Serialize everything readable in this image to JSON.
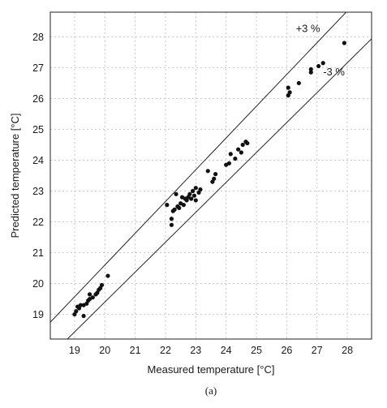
{
  "chart_data": {
    "type": "scatter",
    "xlabel": "Measured temperature [°C]",
    "ylabel": "Predicted temperature [°C]",
    "xlim": [
      18.2,
      28.8
    ],
    "ylim": [
      18.2,
      28.8
    ],
    "xticks": [
      19,
      20,
      21,
      22,
      23,
      24,
      25,
      26,
      27,
      28
    ],
    "yticks": [
      19,
      20,
      21,
      22,
      23,
      24,
      25,
      26,
      27,
      28
    ],
    "grid": true,
    "caption": "(a)",
    "bands": [
      {
        "label": "+3 %",
        "factor": 1.03
      },
      {
        "label": "-3 %",
        "factor": 0.97
      }
    ],
    "points": [
      [
        19.0,
        19.0
      ],
      [
        19.05,
        19.1
      ],
      [
        19.1,
        19.25
      ],
      [
        19.15,
        19.2
      ],
      [
        19.2,
        19.3
      ],
      [
        19.3,
        19.3
      ],
      [
        19.3,
        18.95
      ],
      [
        19.4,
        19.35
      ],
      [
        19.45,
        19.45
      ],
      [
        19.5,
        19.5
      ],
      [
        19.5,
        19.65
      ],
      [
        19.6,
        19.55
      ],
      [
        19.7,
        19.65
      ],
      [
        19.75,
        19.7
      ],
      [
        19.8,
        19.8
      ],
      [
        19.85,
        19.85
      ],
      [
        19.9,
        19.95
      ],
      [
        20.1,
        20.25
      ],
      [
        22.05,
        22.55
      ],
      [
        22.2,
        21.9
      ],
      [
        22.2,
        22.1
      ],
      [
        22.25,
        22.35
      ],
      [
        22.3,
        22.4
      ],
      [
        22.35,
        22.9
      ],
      [
        22.4,
        22.5
      ],
      [
        22.45,
        22.45
      ],
      [
        22.5,
        22.6
      ],
      [
        22.55,
        22.8
      ],
      [
        22.6,
        22.55
      ],
      [
        22.65,
        22.75
      ],
      [
        22.7,
        22.7
      ],
      [
        22.75,
        22.8
      ],
      [
        22.8,
        22.9
      ],
      [
        22.85,
        22.75
      ],
      [
        22.9,
        23.0
      ],
      [
        22.95,
        22.85
      ],
      [
        23.0,
        23.1
      ],
      [
        23.0,
        22.7
      ],
      [
        23.1,
        22.95
      ],
      [
        23.15,
        23.05
      ],
      [
        23.4,
        23.65
      ],
      [
        23.55,
        23.3
      ],
      [
        23.6,
        23.4
      ],
      [
        23.65,
        23.55
      ],
      [
        24.0,
        23.85
      ],
      [
        24.1,
        23.9
      ],
      [
        24.15,
        24.2
      ],
      [
        24.3,
        24.05
      ],
      [
        24.4,
        24.35
      ],
      [
        24.5,
        24.25
      ],
      [
        24.55,
        24.5
      ],
      [
        24.65,
        24.6
      ],
      [
        24.7,
        24.55
      ],
      [
        26.05,
        26.35
      ],
      [
        26.05,
        26.1
      ],
      [
        26.1,
        26.2
      ],
      [
        26.4,
        26.5
      ],
      [
        26.8,
        26.85
      ],
      [
        26.8,
        26.95
      ],
      [
        27.05,
        27.05
      ],
      [
        27.2,
        27.15
      ],
      [
        27.9,
        27.8
      ]
    ]
  }
}
